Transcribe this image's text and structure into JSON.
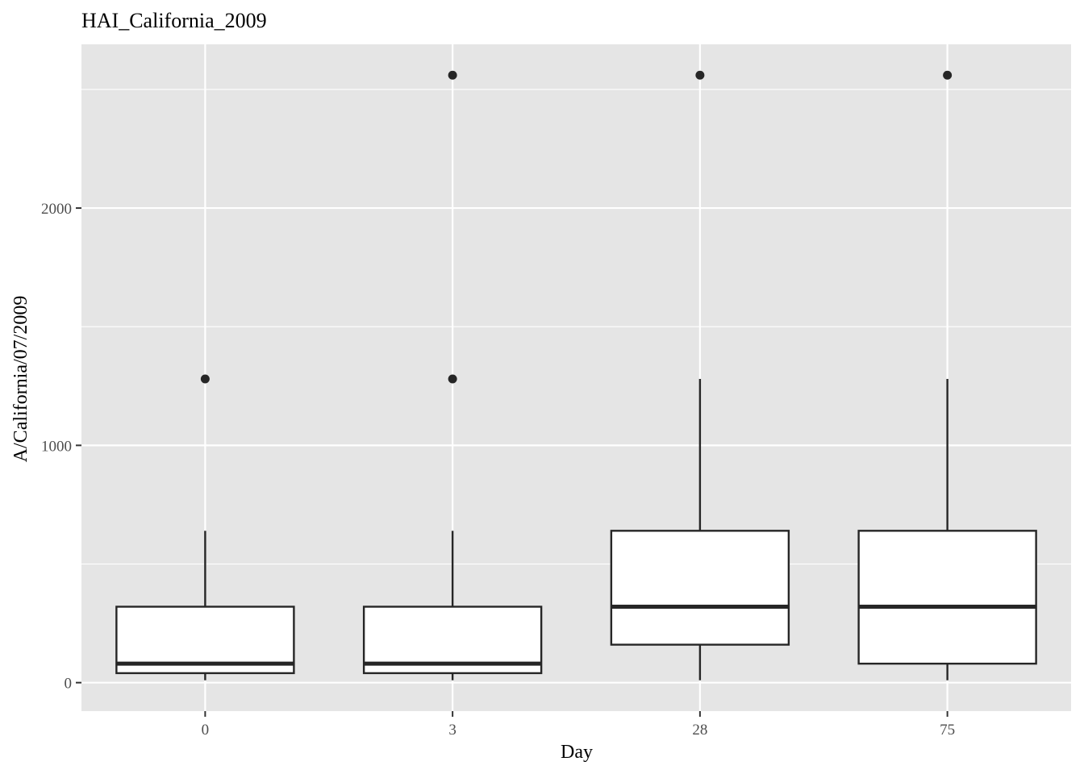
{
  "chart_data": {
    "type": "boxplot",
    "title": "HAI_California_2009",
    "xlabel": "Day",
    "ylabel": "A/California/07/2009",
    "categories": [
      "0",
      "3",
      "28",
      "75"
    ],
    "yticks": [
      0,
      1000,
      2000
    ],
    "ylim": [
      -120,
      2690
    ],
    "grid": true,
    "colors": {
      "panel": "#e5e5e5",
      "grid": "#ffffff",
      "box_fill": "#ffffff",
      "box_line": "#262626",
      "text": "#000000",
      "tick_text": "#4d4d4d"
    },
    "boxes": [
      {
        "category": "0",
        "min": 10,
        "q1": 40,
        "median": 80,
        "q3": 320,
        "max": 640,
        "outliers": [
          1280
        ]
      },
      {
        "category": "3",
        "min": 10,
        "q1": 40,
        "median": 80,
        "q3": 320,
        "max": 640,
        "outliers": [
          1280,
          2560
        ]
      },
      {
        "category": "28",
        "min": 10,
        "q1": 160,
        "median": 320,
        "q3": 640,
        "max": 1280,
        "outliers": [
          2560
        ]
      },
      {
        "category": "75",
        "min": 10,
        "q1": 80,
        "median": 320,
        "q3": 640,
        "max": 1280,
        "outliers": [
          2560
        ]
      }
    ]
  }
}
